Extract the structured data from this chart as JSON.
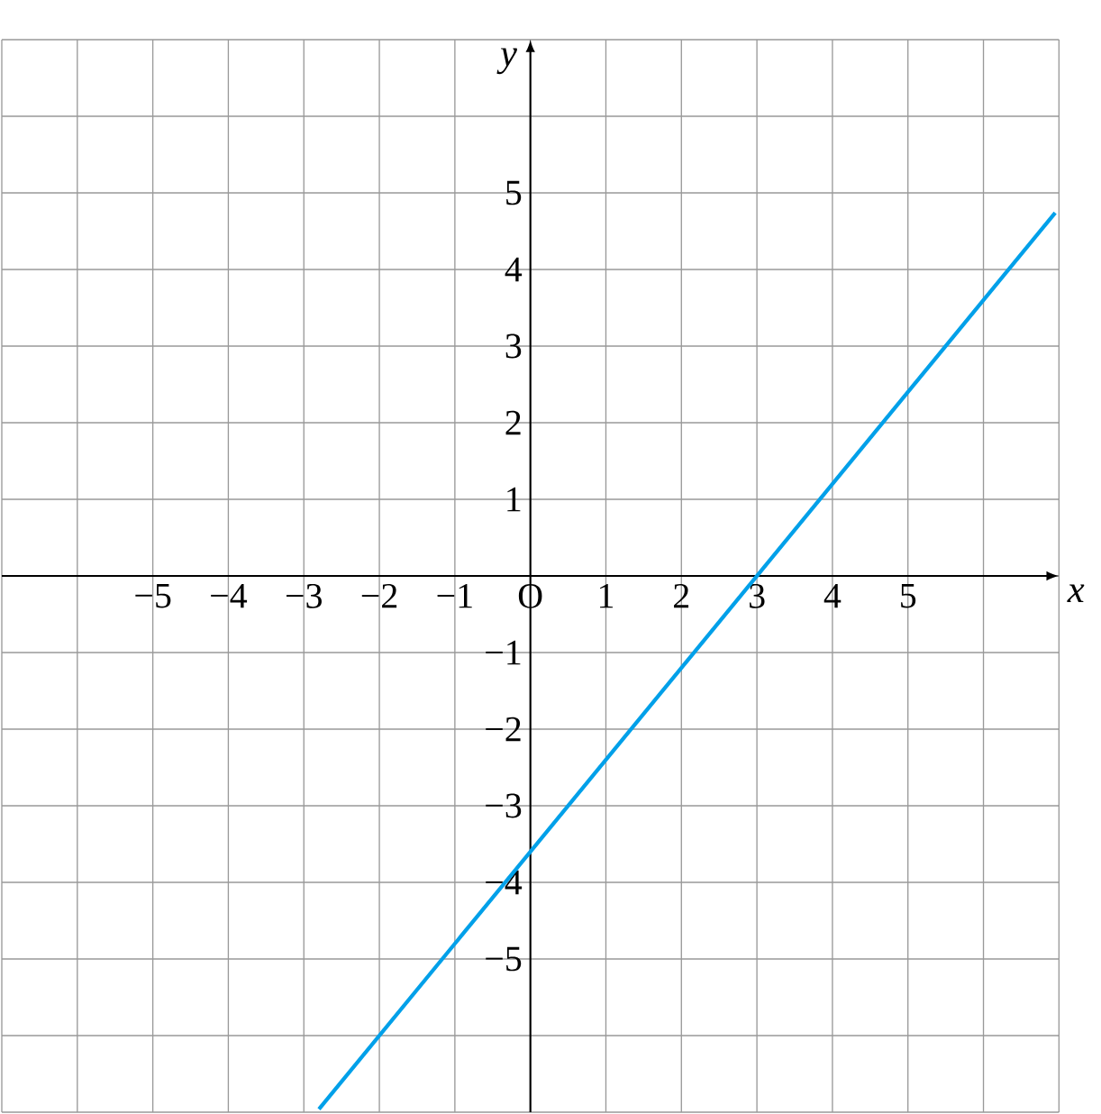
{
  "chart_data": {
    "type": "line",
    "xlabel": "x",
    "ylabel": "y",
    "xlim": [
      -7,
      7
    ],
    "ylim": [
      -7,
      7
    ],
    "xticks": [
      {
        "value": -7,
        "label": null
      },
      {
        "value": -6,
        "label": null
      },
      {
        "value": -5,
        "label": "−5"
      },
      {
        "value": -4,
        "label": "−4"
      },
      {
        "value": -3,
        "label": "−3"
      },
      {
        "value": -2,
        "label": "−2"
      },
      {
        "value": -1,
        "label": "−1"
      },
      {
        "value": 0,
        "label": "O"
      },
      {
        "value": 1,
        "label": "1"
      },
      {
        "value": 2,
        "label": "2"
      },
      {
        "value": 3,
        "label": "3"
      },
      {
        "value": 4,
        "label": "4"
      },
      {
        "value": 5,
        "label": "5"
      },
      {
        "value": 6,
        "label": null
      },
      {
        "value": 7,
        "label": null
      }
    ],
    "yticks": [
      {
        "value": -7,
        "label": null
      },
      {
        "value": -6,
        "label": null
      },
      {
        "value": -5,
        "label": "−5"
      },
      {
        "value": -4,
        "label": "−4"
      },
      {
        "value": -3,
        "label": "−3"
      },
      {
        "value": -2,
        "label": "−2"
      },
      {
        "value": -1,
        "label": "−1"
      },
      {
        "value": 0,
        "label": null
      },
      {
        "value": 1,
        "label": "1"
      },
      {
        "value": 2,
        "label": "2"
      },
      {
        "value": 3,
        "label": "3"
      },
      {
        "value": 4,
        "label": "4"
      },
      {
        "value": 5,
        "label": "5"
      },
      {
        "value": 6,
        "label": null
      },
      {
        "value": 7,
        "label": null
      }
    ],
    "grid": true,
    "series": [
      {
        "color": "#00a0e9",
        "x": [
          -2.8,
          6.95
        ],
        "values": [
          -6.96,
          4.74
        ]
      }
    ]
  }
}
